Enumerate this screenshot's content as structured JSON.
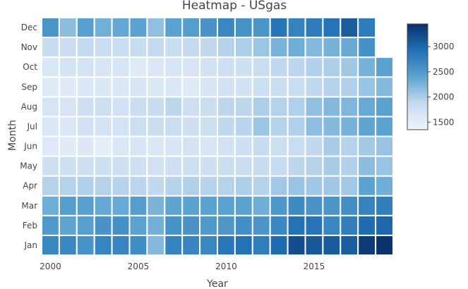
{
  "chart_data": {
    "type": "heatmap",
    "title": "Heatmap - USgas",
    "xlabel": "Year",
    "ylabel": "Month",
    "x": [
      2000,
      2001,
      2002,
      2003,
      2004,
      2005,
      2006,
      2007,
      2008,
      2009,
      2010,
      2011,
      2012,
      2013,
      2014,
      2015,
      2016,
      2017,
      2018,
      2019
    ],
    "x_ticks": [
      2000,
      2005,
      2010,
      2015
    ],
    "y": [
      "Jan",
      "Feb",
      "Mar",
      "Apr",
      "May",
      "Jun",
      "Jul",
      "Aug",
      "Sep",
      "Oct",
      "Nov",
      "Dec"
    ],
    "z": [
      [
        2700,
        2680,
        2560,
        2720,
        2720,
        2640,
        2200,
        2740,
        2720,
        2700,
        2840,
        2900,
        2780,
        2960,
        3200,
        3120,
        3100,
        3080,
        3360,
        3420
      ],
      [
        2500,
        2380,
        2440,
        2560,
        2600,
        2420,
        2280,
        2580,
        2560,
        2500,
        2520,
        2620,
        2540,
        2680,
        2900,
        2880,
        2700,
        2780,
        2960,
        3000
      ],
      [
        2300,
        2460,
        2440,
        2360,
        2340,
        2460,
        2240,
        2380,
        2400,
        2400,
        2420,
        2400,
        2300,
        2520,
        2660,
        2560,
        2540,
        2620,
        2740,
        2780
      ],
      [
        1960,
        1960,
        1980,
        1960,
        1950,
        1930,
        1900,
        1950,
        1980,
        1950,
        1960,
        2000,
        1960,
        2050,
        2100,
        2060,
        2060,
        2050,
        2400,
        2300
      ],
      [
        1780,
        1780,
        1780,
        1760,
        1780,
        1760,
        1740,
        1780,
        1800,
        1770,
        1820,
        1830,
        1860,
        1870,
        1920,
        1960,
        2020,
        1980,
        2160,
        2100
      ],
      [
        1590,
        1560,
        1600,
        1500,
        1620,
        1660,
        1650,
        1680,
        1700,
        1680,
        1720,
        1760,
        1860,
        1800,
        1840,
        1900,
        2020,
        1960,
        2040,
        2100
      ],
      [
        1640,
        1650,
        1720,
        1700,
        1700,
        1800,
        1820,
        1830,
        1780,
        1800,
        1900,
        1940,
        2080,
        1960,
        1980,
        2150,
        2200,
        2260,
        2380,
        2400
      ],
      [
        1680,
        1680,
        1760,
        1800,
        1740,
        1820,
        1860,
        1920,
        1800,
        1820,
        1920,
        1920,
        2000,
        1960,
        1980,
        2140,
        2200,
        2220,
        2340,
        2420
      ],
      [
        1560,
        1560,
        1600,
        1620,
        1640,
        1660,
        1620,
        1640,
        1560,
        1660,
        1720,
        1720,
        1800,
        1820,
        1840,
        1900,
        1960,
        1980,
        2100,
        2200
      ],
      [
        1640,
        1700,
        1700,
        1680,
        1680,
        1560,
        1640,
        1680,
        1680,
        1720,
        1760,
        1780,
        1840,
        1900,
        1920,
        1980,
        2000,
        2060,
        2260,
        2420
      ],
      [
        1860,
        1830,
        1880,
        1840,
        1840,
        1860,
        1880,
        1840,
        1880,
        1900,
        1960,
        2000,
        2080,
        2240,
        2300,
        2200,
        2260,
        2340,
        2600
      ],
      [
        2540,
        2160,
        2440,
        2280,
        2360,
        2420,
        2140,
        2420,
        2460,
        2560,
        2700,
        2580,
        2540,
        2860,
        2740,
        2800,
        2880,
        3080,
        2800
      ]
    ],
    "colorscale": {
      "min": 1350,
      "max": 3450,
      "stops": [
        "#f0f4fc",
        "#c6dbef",
        "#5ba3d0",
        "#2170b5",
        "#08306b"
      ],
      "ticks": [
        1500,
        2000,
        2500,
        3000
      ]
    },
    "grid": false
  }
}
